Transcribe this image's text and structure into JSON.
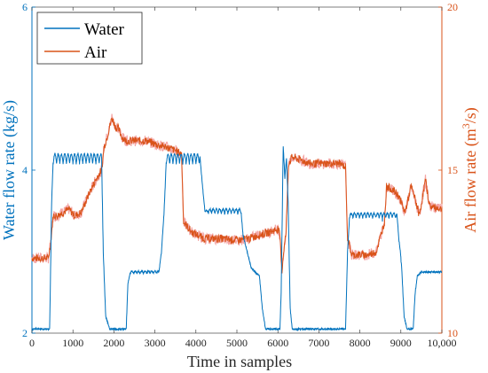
{
  "chart_data": {
    "type": "line",
    "xlabel": "Time in samples",
    "ylabel_left": "Water flow rate (kg/s)",
    "ylabel_right": "Air flow rate (m³/s)",
    "ylabel_right_base": "Air flow rate (m",
    "ylabel_right_sup": "3",
    "ylabel_right_tail": "/s)",
    "xlim": [
      0,
      10000
    ],
    "ylim_left": [
      2,
      6
    ],
    "ylim_right": [
      10,
      20
    ],
    "x_ticks": [
      0,
      1000,
      2000,
      3000,
      4000,
      5000,
      6000,
      7000,
      8000,
      9000,
      10000
    ],
    "x_tick_labels": [
      "0",
      "1000",
      "2000",
      "3000",
      "4000",
      "5000",
      "6000",
      "7000",
      "8000",
      "9000",
      "10,000"
    ],
    "y_left_ticks": [
      2,
      4,
      6
    ],
    "y_left_tick_labels": [
      "2",
      "4",
      "6"
    ],
    "y_right_ticks": [
      10,
      15,
      20
    ],
    "y_right_tick_labels": [
      "10",
      "15",
      "20"
    ],
    "grid": false,
    "legend_position": "top-left",
    "colors": {
      "water": "#0072BD",
      "air": "#D95319",
      "air_band": "#F4A6A6"
    },
    "series": [
      {
        "name": "Water",
        "axis": "left",
        "x": [
          0,
          430,
          440,
          480,
          520,
          1700,
          1740,
          1800,
          1900,
          2300,
          2340,
          2400,
          3100,
          3160,
          3220,
          3280,
          4100,
          4180,
          4220,
          4300,
          5100,
          5150,
          5250,
          5350,
          5550,
          5620,
          5700,
          6050,
          6080,
          6130,
          6170,
          6210,
          6250,
          6300,
          6350,
          7650,
          7700,
          7750,
          8550,
          8600,
          8700,
          8900,
          9020,
          9080,
          9150,
          9300,
          9350,
          9400,
          9500,
          10000
        ],
        "y": [
          2.05,
          2.05,
          2.3,
          3.6,
          4.15,
          4.15,
          3.0,
          2.2,
          2.05,
          2.05,
          2.6,
          2.75,
          2.75,
          3.0,
          3.45,
          4.15,
          4.15,
          3.7,
          3.5,
          3.5,
          3.5,
          3.2,
          3.0,
          2.8,
          2.7,
          2.3,
          2.05,
          2.05,
          2.5,
          4.3,
          3.9,
          4.15,
          3.6,
          2.3,
          2.05,
          2.05,
          3.0,
          3.45,
          3.45,
          3.45,
          3.45,
          3.45,
          2.8,
          2.2,
          2.05,
          2.05,
          2.5,
          2.7,
          2.75,
          2.75
        ],
        "ripple": [
          {
            "from": 520,
            "to": 1700,
            "amplitude": 0.12,
            "period": 80
          },
          {
            "from": 2400,
            "to": 3100,
            "amplitude": 0.03,
            "period": 80
          },
          {
            "from": 3280,
            "to": 4100,
            "amplitude": 0.12,
            "period": 80
          },
          {
            "from": 4300,
            "to": 5100,
            "amplitude": 0.06,
            "period": 80
          },
          {
            "from": 7750,
            "to": 8550,
            "amplitude": 0.06,
            "period": 80
          },
          {
            "from": 8550,
            "to": 9000,
            "amplitude": 0.06,
            "period": 80
          }
        ]
      },
      {
        "name": "Air",
        "axis": "right",
        "x": [
          0,
          400,
          450,
          520,
          600,
          750,
          900,
          1050,
          1200,
          1400,
          1600,
          1700,
          1760,
          1850,
          1950,
          2050,
          2100,
          2200,
          2300,
          2500,
          2800,
          3000,
          3300,
          3500,
          3650,
          3700,
          3900,
          4200,
          4600,
          5000,
          5300,
          5500,
          5800,
          6000,
          6050,
          6100,
          6140,
          6200,
          6260,
          6350,
          6800,
          7200,
          7500,
          7650,
          7700,
          7800,
          8000,
          8200,
          8400,
          8600,
          8650,
          8800,
          8950,
          9100,
          9250,
          9350,
          9450,
          9600,
          9700,
          10000
        ],
        "y": [
          12.3,
          12.3,
          12.7,
          13.6,
          13.6,
          13.7,
          13.8,
          13.6,
          13.7,
          14.3,
          14.8,
          15.0,
          15.7,
          16.1,
          16.6,
          16.3,
          16.3,
          16.0,
          15.9,
          15.9,
          15.9,
          15.8,
          15.7,
          15.6,
          15.5,
          13.4,
          13.1,
          12.9,
          12.9,
          12.85,
          12.9,
          13.0,
          13.1,
          13.2,
          13.0,
          11.9,
          12.5,
          13.1,
          15.2,
          15.4,
          15.2,
          15.2,
          15.2,
          15.1,
          12.9,
          12.4,
          12.4,
          12.4,
          12.5,
          13.4,
          14.5,
          14.4,
          14.2,
          13.7,
          14.5,
          14.1,
          13.6,
          14.7,
          13.9,
          13.8
        ],
        "noise": 0.12
      }
    ]
  }
}
